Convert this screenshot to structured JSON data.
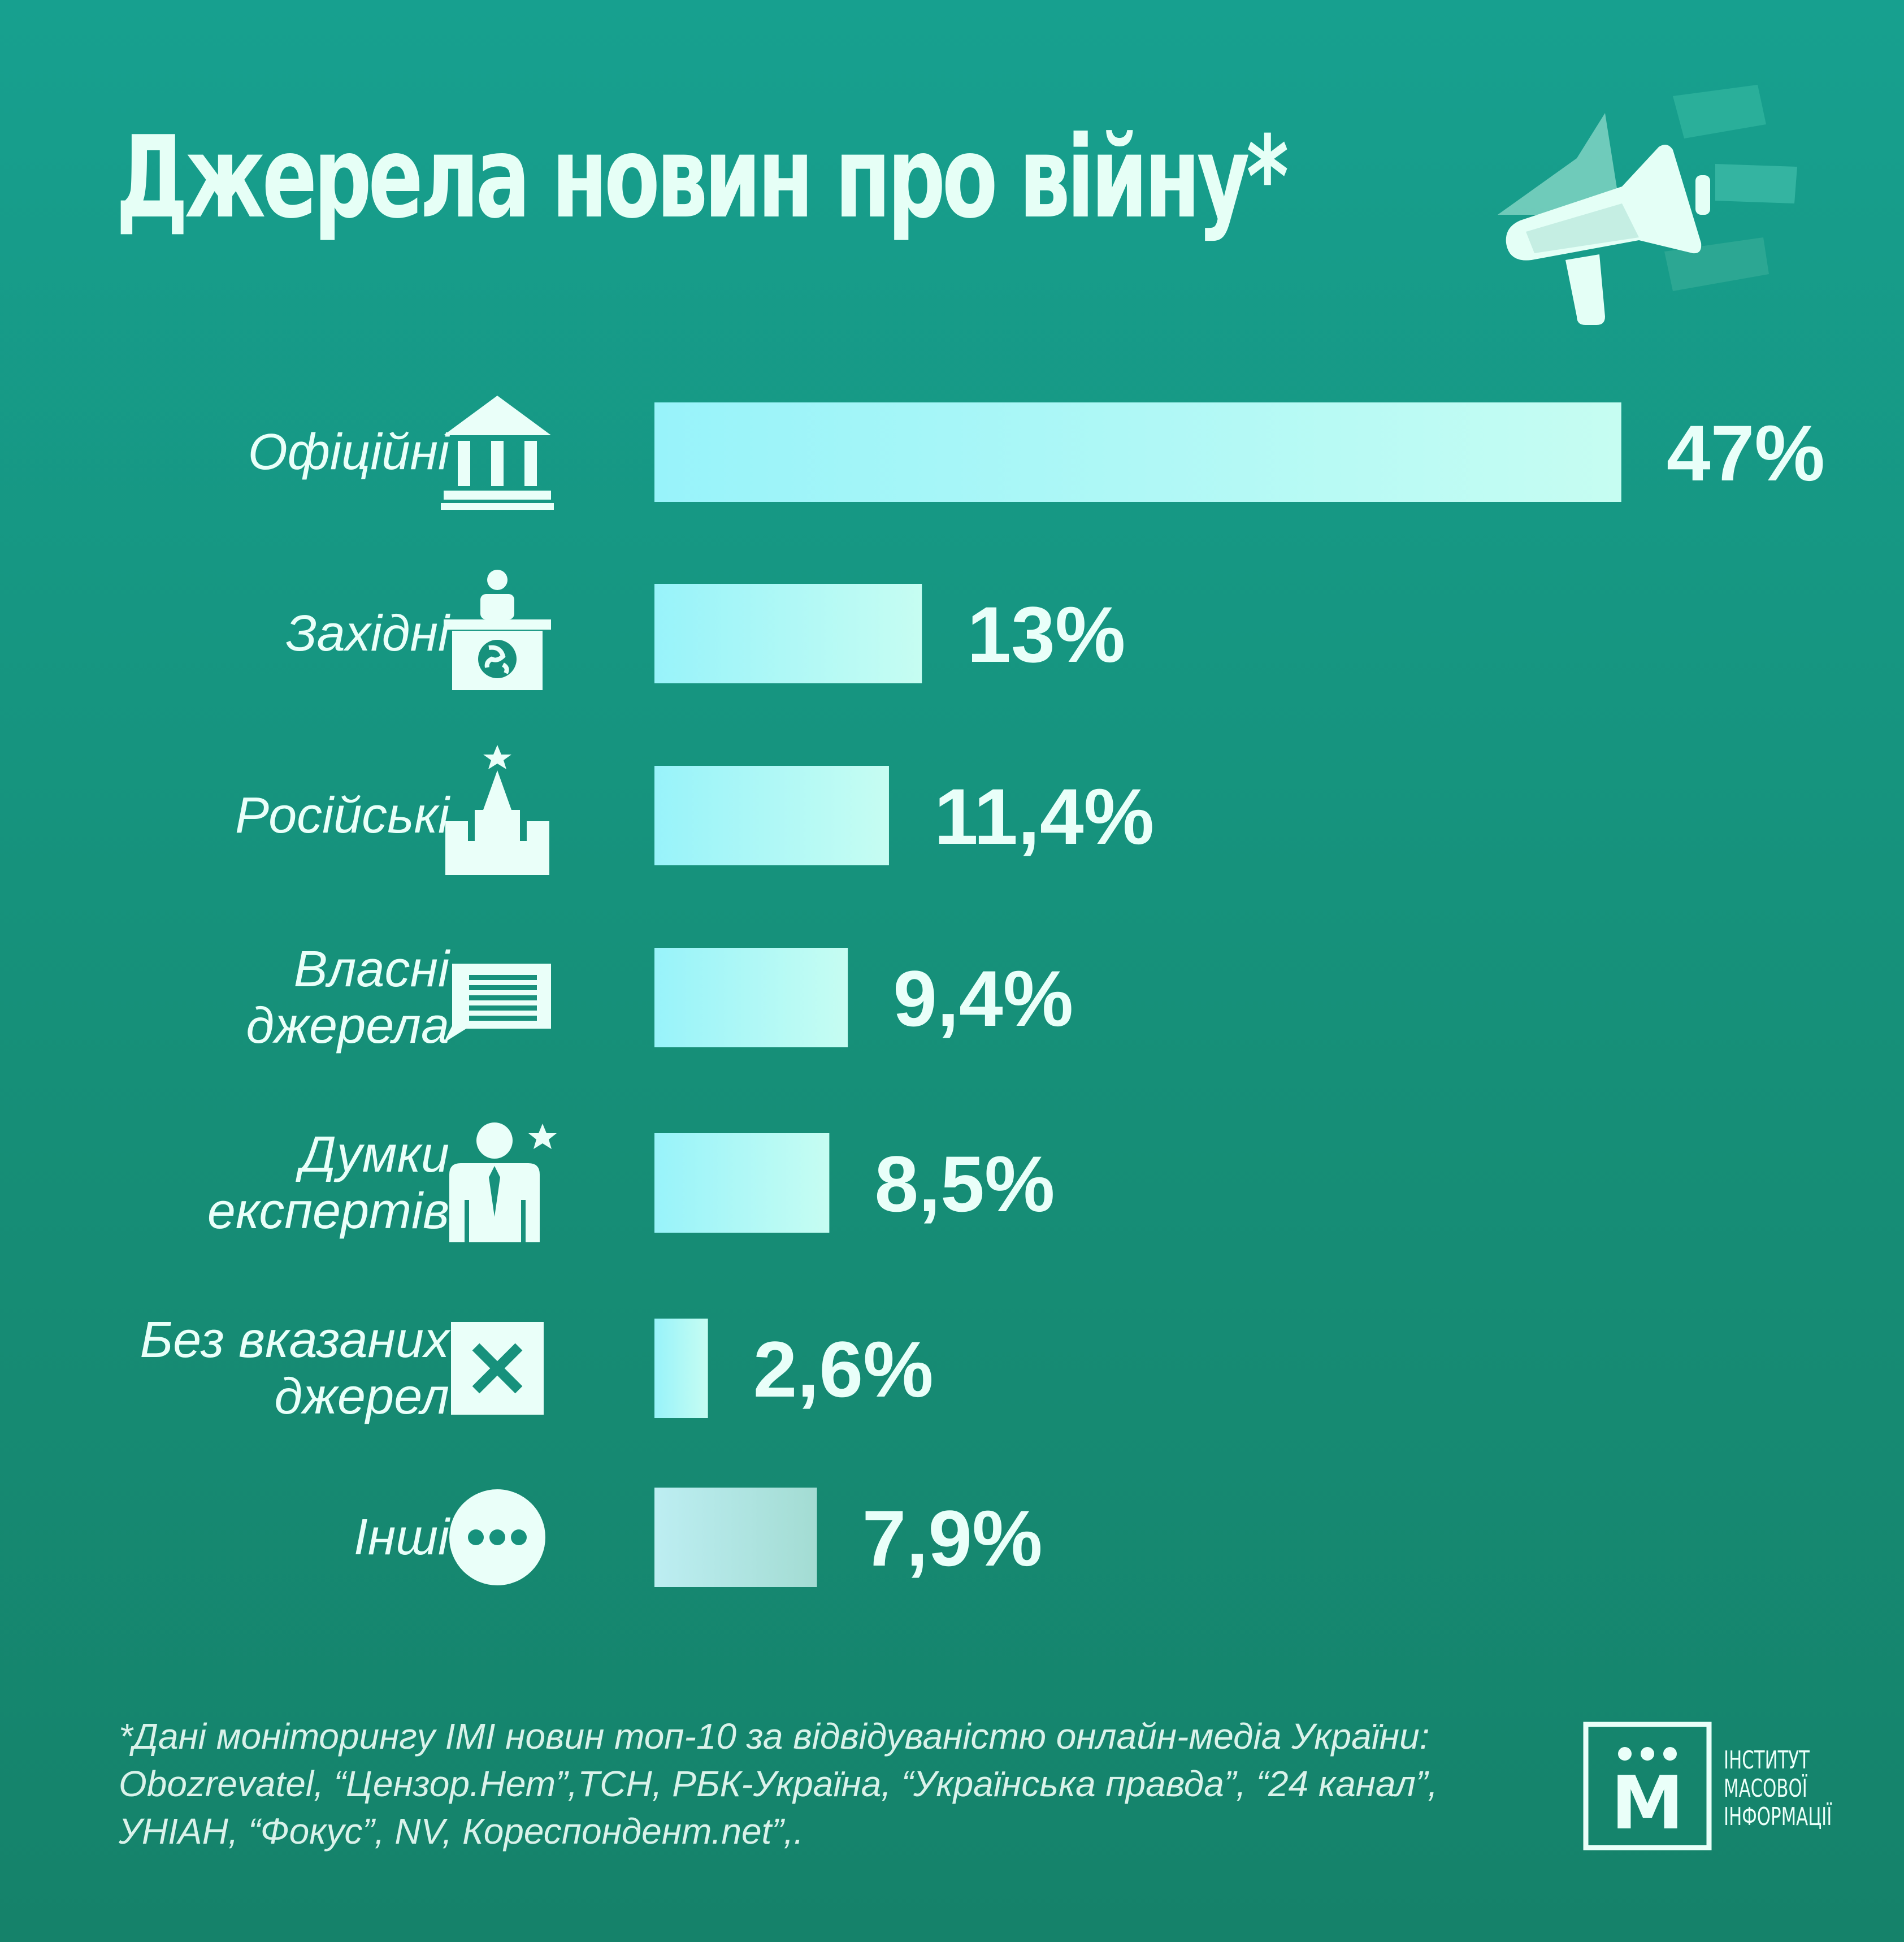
{
  "title": "Джерела новин про війну*",
  "colors": {
    "bar_start": "#98f3fa",
    "bar_end": "#c6fdf2",
    "other_bar_start": "#bdeef2",
    "other_bar_end": "#a3dcd3",
    "text": "#e9fff9"
  },
  "chart_data": {
    "type": "bar",
    "orientation": "horizontal",
    "unit": "%",
    "categories": [
      {
        "label": [
          "Офіційні"
        ],
        "value": 47,
        "value_label": "47%",
        "icon": "government-building-icon"
      },
      {
        "label": [
          "Західні"
        ],
        "value": 13,
        "value_label": "13%",
        "icon": "news-desk-globe-icon"
      },
      {
        "label": [
          "Російські"
        ],
        "value": 11.4,
        "value_label": "11,4%",
        "icon": "kremlin-tower-icon"
      },
      {
        "label": [
          "Власні",
          "джерела"
        ],
        "value": 9.4,
        "value_label": "9,4%",
        "icon": "document-bubble-icon"
      },
      {
        "label": [
          "Думки",
          "експертів"
        ],
        "value": 8.5,
        "value_label": "8,5%",
        "icon": "expert-person-star-icon"
      },
      {
        "label": [
          "Без вказаних",
          "джерел"
        ],
        "value": 2.6,
        "value_label": "2,6%",
        "icon": "cross-box-icon"
      },
      {
        "label": [
          "Інші"
        ],
        "value": 7.9,
        "value_label": "7,9%",
        "icon": "ellipsis-circle-icon"
      }
    ]
  },
  "footnote": {
    "lines": [
      "*Дані моніторингу IMI новин топ-10 за відвідуваністю онлайн-медіа України:",
      "Obozrevatel, “Цензор.Нет”,ТСН, РБК-Україна, “Українська правда”, “24 канал”,",
      "УНІАН, “Фокус”, NV, Кореспондент.net”,."
    ]
  },
  "logo": {
    "letter": "М",
    "lines": [
      "ІНСТИТУТ",
      "МАСОВОЇ",
      "ІНФОРМАЦІЇ"
    ]
  }
}
